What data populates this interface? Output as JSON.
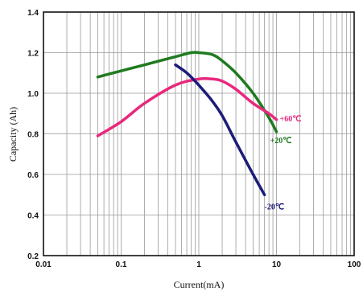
{
  "chart_data": {
    "type": "line",
    "title": "",
    "xlabel": "Current(mA)",
    "ylabel": "Capacity (Ah)",
    "x_scale": "log",
    "xlim": [
      0.01,
      100
    ],
    "ylim": [
      0.2,
      1.4
    ],
    "x_ticks": [
      "0.01",
      "0.1",
      "1",
      "10",
      "100"
    ],
    "y_ticks": [
      "0.2",
      "0.4",
      "0.6",
      "0.8",
      "1.0",
      "1.2",
      "1.4"
    ],
    "grid": true,
    "series": [
      {
        "name": "+20℃",
        "color": "#1f7a1f",
        "x": [
          0.05,
          0.1,
          0.2,
          0.5,
          0.8,
          1.0,
          1.5,
          2.0,
          3.0,
          5.0,
          8.0,
          10.0
        ],
        "y": [
          1.08,
          1.11,
          1.14,
          1.18,
          1.2,
          1.2,
          1.19,
          1.16,
          1.1,
          1.0,
          0.88,
          0.81
        ]
      },
      {
        "name": "+60℃",
        "color": "#e8287d",
        "x": [
          0.05,
          0.1,
          0.2,
          0.5,
          1.0,
          1.5,
          2.0,
          3.0,
          5.0,
          8.0,
          10.0
        ],
        "y": [
          0.79,
          0.86,
          0.95,
          1.04,
          1.07,
          1.07,
          1.06,
          1.02,
          0.95,
          0.9,
          0.87
        ]
      },
      {
        "name": "-20℃",
        "color": "#1c1c7a",
        "x": [
          0.5,
          0.7,
          1.0,
          1.5,
          2.0,
          3.0,
          5.0,
          7.0
        ],
        "y": [
          1.14,
          1.1,
          1.04,
          0.96,
          0.89,
          0.76,
          0.6,
          0.5
        ]
      }
    ]
  }
}
